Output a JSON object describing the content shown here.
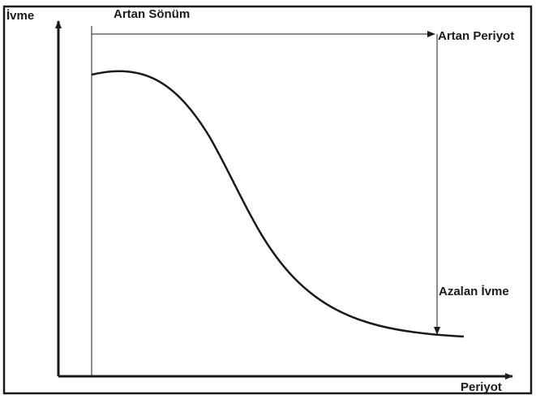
{
  "labels": {
    "y_axis": "İvme",
    "x_axis": "Periyot",
    "top": "Artan Sönüm",
    "top_right": "Artan Periyot",
    "lower_right": "Azalan İvme"
  },
  "colors": {
    "line": "#1a1a1a",
    "frame": "#1a1a1a",
    "background": "#ffffff"
  }
}
